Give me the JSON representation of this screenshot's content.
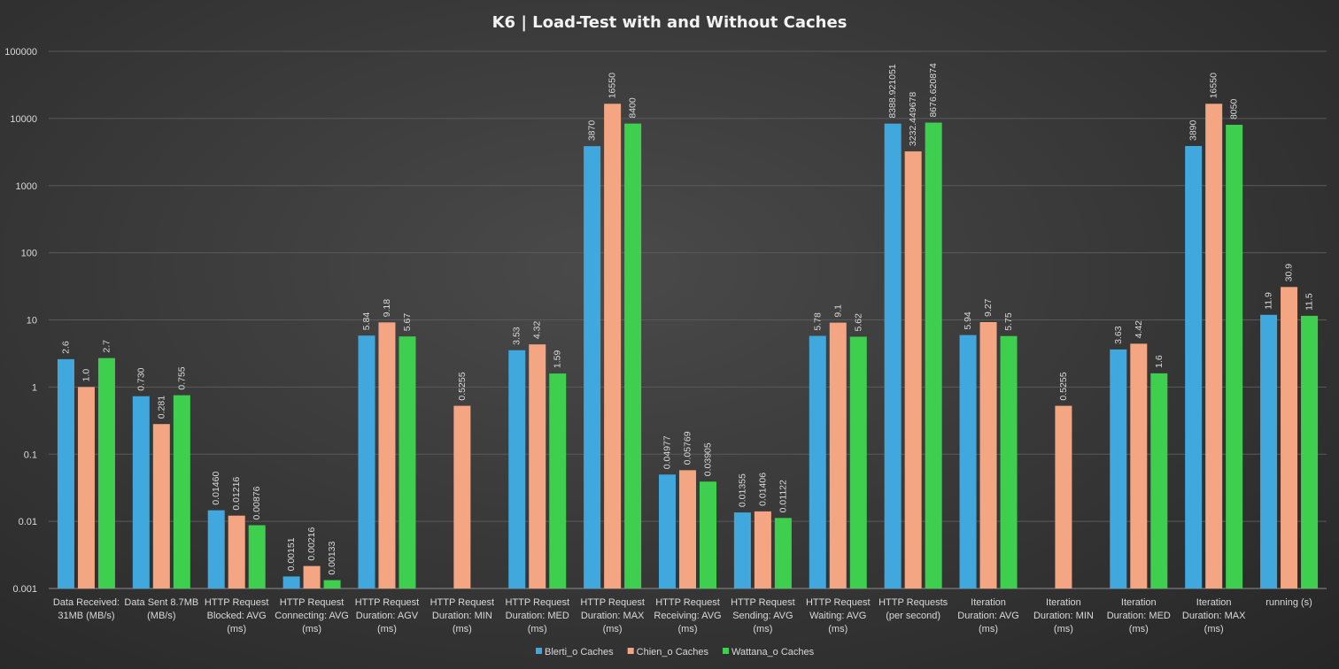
{
  "chart_data": {
    "type": "bar",
    "title": "K6 | Load-Test with and Without Caches",
    "xlabel": "",
    "ylabel": "",
    "y_scale": "log",
    "ylim": [
      0.001,
      100000
    ],
    "y_ticks": [
      "0.001",
      "0.01",
      "0.1",
      "1",
      "10",
      "100",
      "1000",
      "10000",
      "100000"
    ],
    "grid": true,
    "legend_position": "bottom",
    "categories": [
      [
        "Data Received:",
        "31MB (MB/s)"
      ],
      [
        "Data Sent 8.7MB",
        "(MB/s)"
      ],
      [
        "HTTP Request",
        "Blocked: AVG",
        "(ms)"
      ],
      [
        "HTTP Request",
        "Connecting: AVG",
        "(ms)"
      ],
      [
        "HTTP Request",
        "Duration: AGV",
        "(ms)"
      ],
      [
        "HTTP Request",
        "Duration: MIN",
        "(ms)"
      ],
      [
        "HTTP Request",
        "Duration: MED",
        "(ms)"
      ],
      [
        "HTTP Request",
        "Duration: MAX",
        "(ms)"
      ],
      [
        "HTTP Request",
        "Receiving: AVG",
        "(ms)"
      ],
      [
        "HTTP Request",
        "Sending: AVG",
        "(ms)"
      ],
      [
        "HTTP Request",
        "Waiting: AVG",
        "(ms)"
      ],
      [
        "HTTP Requests",
        "(per second)"
      ],
      [
        "Iteration",
        "Duration: AVG",
        "(ms)"
      ],
      [
        "Iteration",
        "Duration: MIN",
        "(ms)"
      ],
      [
        "Iteration",
        "Duration: MED",
        "(ms)"
      ],
      [
        "Iteration",
        "Duration: MAX",
        "(ms)"
      ],
      [
        "running (s)"
      ]
    ],
    "series": [
      {
        "name": "Blerti_o Caches",
        "color": "#41a8de",
        "values": [
          2.6,
          0.73,
          0.0146,
          0.00151,
          5.84,
          null,
          3.53,
          3870,
          0.04977,
          0.01355,
          5.78,
          8388.921051,
          5.94,
          null,
          3.63,
          3890,
          11.9
        ],
        "labels": [
          "2.6",
          "0.730",
          "0.01460",
          "0.00151",
          "5.84",
          "",
          "3.53",
          "3870",
          "0.04977",
          "0.01355",
          "5.78",
          "8388.921051",
          "5.94",
          "",
          "3.63",
          "3890",
          "11.9"
        ]
      },
      {
        "name": "Chien_o Caches",
        "color": "#f4a582",
        "values": [
          1.0,
          0.281,
          0.01216,
          0.00216,
          9.18,
          0.5255,
          4.32,
          16550,
          0.05769,
          0.01406,
          9.1,
          3232.449678,
          9.27,
          0.5255,
          4.42,
          16550,
          30.9
        ],
        "labels": [
          "1.0",
          "0.281",
          "0.01216",
          "0.00216",
          "9.18",
          "0.5255",
          "4.32",
          "16550",
          "0.05769",
          "0.01406",
          "9.1",
          "3232.449678",
          "9.27",
          "0.5255",
          "4.42",
          "16550",
          "30.9"
        ]
      },
      {
        "name": "Wattana_o Caches",
        "color": "#3fcf4f",
        "values": [
          2.7,
          0.755,
          0.00876,
          0.00133,
          5.67,
          null,
          1.59,
          8400,
          0.03905,
          0.01122,
          5.62,
          8676.620874,
          5.75,
          null,
          1.6,
          8050,
          11.5
        ],
        "labels": [
          "2.7",
          "0.755",
          "0.00876",
          "0.00133",
          "5.67",
          "",
          "1.59",
          "8400",
          "0.03905",
          "0.01122",
          "5.62",
          "8676.620874",
          "5.75",
          "",
          "1.6",
          "8050",
          "11.5"
        ]
      }
    ]
  }
}
